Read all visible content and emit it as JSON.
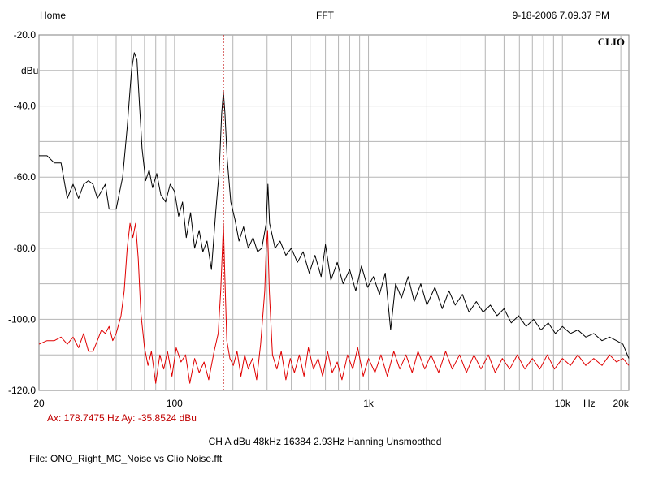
{
  "header": {
    "left": "Home",
    "center": "FFT",
    "right": "9-18-2006 7.09.37 PM"
  },
  "logo": "CLIO",
  "cursor_readout": "Ax: 178.7475 Hz   Ay: -35.8524 dBu",
  "settings_line": "CH A   dBu   48kHz   16384   2.93Hz   Hanning   Unsmoothed",
  "file_line": "File: ONO_Right_MC_Noise vs Clio Noise.fft",
  "colors": {
    "series_black": "#000000",
    "series_red": "#e00000",
    "cursor": "#c00000",
    "grid": "#b5b5b5"
  },
  "chart_data": {
    "type": "line",
    "xscale": "log",
    "xlim": [
      20,
      22000
    ],
    "ylim": [
      -120,
      -20
    ],
    "ylabel": "dBu",
    "xlabel": "Hz",
    "yticks": [
      {
        "value": -20,
        "label": "-20.0"
      },
      {
        "value": -40,
        "label": "-40.0"
      },
      {
        "value": -60,
        "label": "-60.0"
      },
      {
        "value": -80,
        "label": "-80.0"
      },
      {
        "value": -100,
        "label": "-100.0"
      },
      {
        "value": -120,
        "label": "-120.0"
      }
    ],
    "xticks": [
      {
        "value": 20,
        "label": "20"
      },
      {
        "value": 100,
        "label": "100"
      },
      {
        "value": 1000,
        "label": "1k"
      },
      {
        "value": 10000,
        "label": "10k"
      },
      {
        "value": 20000,
        "label": "20k"
      }
    ],
    "cursor_x": 178.7475,
    "series": [
      {
        "color": "black",
        "points": [
          [
            20,
            -54
          ],
          [
            22,
            -54
          ],
          [
            24,
            -56
          ],
          [
            26,
            -56
          ],
          [
            28,
            -66
          ],
          [
            30,
            -62
          ],
          [
            32,
            -66
          ],
          [
            34,
            -62
          ],
          [
            36,
            -61
          ],
          [
            38,
            -62
          ],
          [
            40,
            -66
          ],
          [
            44,
            -62
          ],
          [
            46,
            -69
          ],
          [
            50,
            -69
          ],
          [
            54,
            -60
          ],
          [
            57,
            -46
          ],
          [
            60,
            -30
          ],
          [
            62,
            -25
          ],
          [
            64,
            -27
          ],
          [
            66,
            -40
          ],
          [
            68,
            -52
          ],
          [
            71,
            -61
          ],
          [
            74,
            -58
          ],
          [
            77,
            -63
          ],
          [
            81,
            -59
          ],
          [
            85,
            -65
          ],
          [
            90,
            -67
          ],
          [
            95,
            -62
          ],
          [
            100,
            -64
          ],
          [
            105,
            -71
          ],
          [
            110,
            -67
          ],
          [
            115,
            -77
          ],
          [
            121,
            -70
          ],
          [
            127,
            -80
          ],
          [
            134,
            -75
          ],
          [
            140,
            -81
          ],
          [
            147,
            -78
          ],
          [
            155,
            -86
          ],
          [
            163,
            -70
          ],
          [
            170,
            -58
          ],
          [
            175,
            -42
          ],
          [
            178.7,
            -36
          ],
          [
            182,
            -42
          ],
          [
            187,
            -55
          ],
          [
            195,
            -67
          ],
          [
            205,
            -72
          ],
          [
            215,
            -78
          ],
          [
            227,
            -74
          ],
          [
            240,
            -80
          ],
          [
            254,
            -77
          ],
          [
            268,
            -81
          ],
          [
            282,
            -80
          ],
          [
            297,
            -73
          ],
          [
            303,
            -62
          ],
          [
            309,
            -73
          ],
          [
            330,
            -80
          ],
          [
            350,
            -78
          ],
          [
            375,
            -82
          ],
          [
            400,
            -80
          ],
          [
            430,
            -84
          ],
          [
            460,
            -81
          ],
          [
            495,
            -87
          ],
          [
            530,
            -82
          ],
          [
            570,
            -88
          ],
          [
            600,
            -79
          ],
          [
            640,
            -89
          ],
          [
            690,
            -84
          ],
          [
            740,
            -90
          ],
          [
            800,
            -86
          ],
          [
            860,
            -92
          ],
          [
            920,
            -85
          ],
          [
            990,
            -91
          ],
          [
            1060,
            -88
          ],
          [
            1140,
            -93
          ],
          [
            1220,
            -87
          ],
          [
            1300,
            -103
          ],
          [
            1380,
            -90
          ],
          [
            1480,
            -94
          ],
          [
            1600,
            -88
          ],
          [
            1720,
            -95
          ],
          [
            1860,
            -90
          ],
          [
            2000,
            -96
          ],
          [
            2200,
            -91
          ],
          [
            2400,
            -97
          ],
          [
            2600,
            -92
          ],
          [
            2800,
            -96
          ],
          [
            3050,
            -93
          ],
          [
            3300,
            -98
          ],
          [
            3600,
            -95
          ],
          [
            3900,
            -98
          ],
          [
            4250,
            -96
          ],
          [
            4600,
            -99
          ],
          [
            5000,
            -97
          ],
          [
            5450,
            -101
          ],
          [
            5950,
            -99
          ],
          [
            6500,
            -102
          ],
          [
            7100,
            -100
          ],
          [
            7750,
            -103
          ],
          [
            8450,
            -101
          ],
          [
            9200,
            -104
          ],
          [
            10000,
            -102
          ],
          [
            11000,
            -104
          ],
          [
            12000,
            -103
          ],
          [
            13200,
            -105
          ],
          [
            14500,
            -104
          ],
          [
            16000,
            -106
          ],
          [
            17500,
            -105
          ],
          [
            19000,
            -106
          ],
          [
            20500,
            -107
          ],
          [
            22000,
            -111
          ]
        ]
      },
      {
        "color": "red",
        "points": [
          [
            20,
            -107
          ],
          [
            22,
            -106
          ],
          [
            24,
            -106
          ],
          [
            26,
            -105
          ],
          [
            28,
            -107
          ],
          [
            30,
            -105
          ],
          [
            32,
            -108
          ],
          [
            34,
            -104
          ],
          [
            36,
            -109
          ],
          [
            38,
            -109
          ],
          [
            40,
            -106
          ],
          [
            42,
            -103
          ],
          [
            44,
            -104
          ],
          [
            46,
            -102
          ],
          [
            48,
            -106
          ],
          [
            50,
            -104
          ],
          [
            53,
            -99
          ],
          [
            55,
            -92
          ],
          [
            57,
            -80
          ],
          [
            59,
            -73
          ],
          [
            61,
            -77
          ],
          [
            63,
            -73
          ],
          [
            65,
            -83
          ],
          [
            67,
            -98
          ],
          [
            70,
            -108
          ],
          [
            73,
            -113
          ],
          [
            76,
            -109
          ],
          [
            80,
            -118
          ],
          [
            84,
            -110
          ],
          [
            88,
            -114
          ],
          [
            92,
            -109
          ],
          [
            97,
            -116
          ],
          [
            102,
            -108
          ],
          [
            108,
            -112
          ],
          [
            114,
            -110
          ],
          [
            120,
            -118
          ],
          [
            127,
            -111
          ],
          [
            134,
            -115
          ],
          [
            142,
            -112
          ],
          [
            150,
            -117
          ],
          [
            160,
            -109
          ],
          [
            168,
            -104
          ],
          [
            173,
            -92
          ],
          [
            177,
            -79
          ],
          [
            178.7,
            -73
          ],
          [
            181,
            -85
          ],
          [
            186,
            -106
          ],
          [
            193,
            -111
          ],
          [
            201,
            -113
          ],
          [
            210,
            -109
          ],
          [
            220,
            -116
          ],
          [
            230,
            -110
          ],
          [
            240,
            -114
          ],
          [
            252,
            -111
          ],
          [
            265,
            -117
          ],
          [
            278,
            -107
          ],
          [
            292,
            -92
          ],
          [
            297,
            -80
          ],
          [
            302,
            -75
          ],
          [
            308,
            -92
          ],
          [
            320,
            -110
          ],
          [
            337,
            -114
          ],
          [
            355,
            -109
          ],
          [
            375,
            -117
          ],
          [
            395,
            -111
          ],
          [
            415,
            -115
          ],
          [
            440,
            -110
          ],
          [
            465,
            -116
          ],
          [
            490,
            -108
          ],
          [
            520,
            -114
          ],
          [
            550,
            -111
          ],
          [
            580,
            -116
          ],
          [
            615,
            -109
          ],
          [
            650,
            -115
          ],
          [
            690,
            -112
          ],
          [
            730,
            -117
          ],
          [
            780,
            -110
          ],
          [
            830,
            -114
          ],
          [
            880,
            -108
          ],
          [
            940,
            -116
          ],
          [
            1000,
            -111
          ],
          [
            1080,
            -115
          ],
          [
            1160,
            -110
          ],
          [
            1250,
            -116
          ],
          [
            1350,
            -109
          ],
          [
            1450,
            -114
          ],
          [
            1560,
            -110
          ],
          [
            1680,
            -115
          ],
          [
            1800,
            -109
          ],
          [
            1950,
            -114
          ],
          [
            2100,
            -110
          ],
          [
            2300,
            -115
          ],
          [
            2500,
            -109
          ],
          [
            2700,
            -114
          ],
          [
            2950,
            -110
          ],
          [
            3200,
            -115
          ],
          [
            3500,
            -110
          ],
          [
            3800,
            -114
          ],
          [
            4150,
            -110
          ],
          [
            4500,
            -115
          ],
          [
            4900,
            -111
          ],
          [
            5350,
            -114
          ],
          [
            5850,
            -110
          ],
          [
            6400,
            -114
          ],
          [
            7000,
            -111
          ],
          [
            7650,
            -114
          ],
          [
            8350,
            -110
          ],
          [
            9100,
            -114
          ],
          [
            10000,
            -111
          ],
          [
            11000,
            -113
          ],
          [
            12000,
            -110
          ],
          [
            13200,
            -113
          ],
          [
            14500,
            -111
          ],
          [
            16000,
            -113
          ],
          [
            17500,
            -110
          ],
          [
            19000,
            -112
          ],
          [
            20500,
            -111
          ],
          [
            22000,
            -113
          ]
        ]
      }
    ]
  }
}
